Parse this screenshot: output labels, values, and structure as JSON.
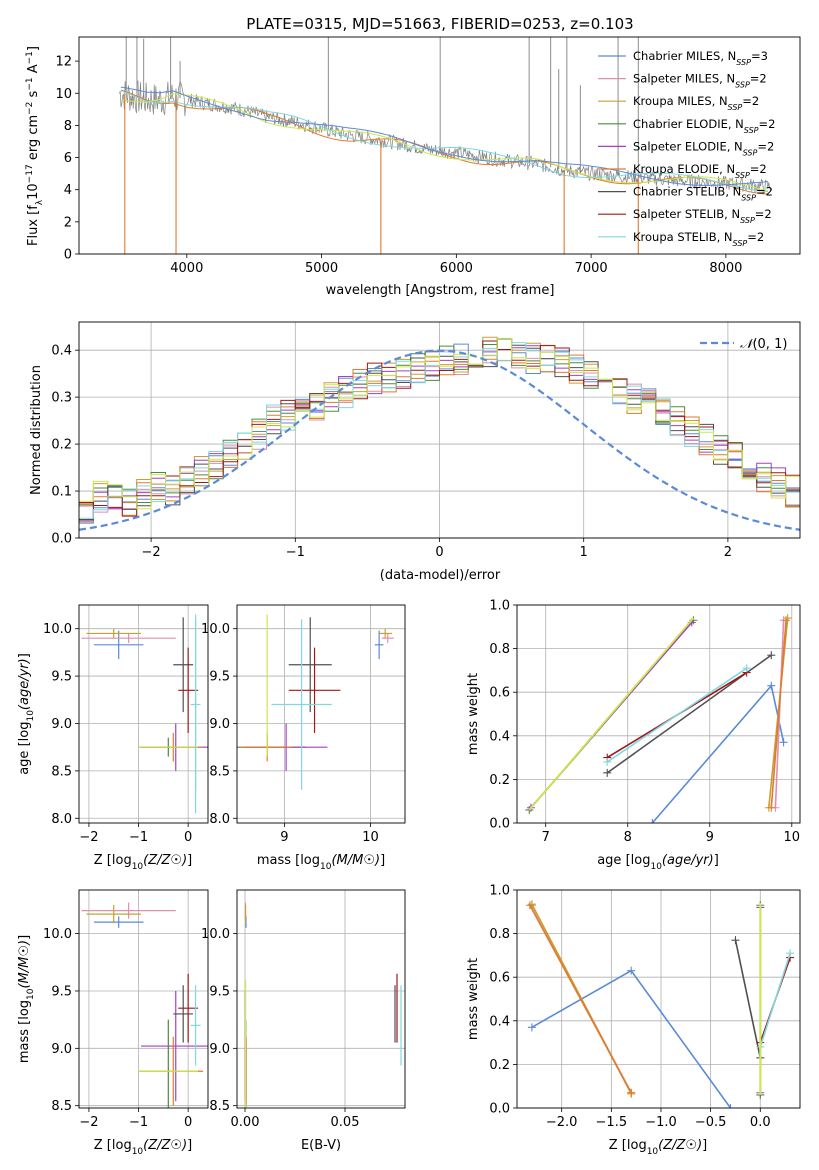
{
  "colors": {
    "chabrier_miles": "#5b8bd6",
    "salpeter_miles": "#de8fb2",
    "kroupa_miles": "#c8a032",
    "chabrier_elodie": "#4e8a3c",
    "salpeter_elodie": "#a63fc4",
    "kroupa_elodie": "#e07a2e",
    "chabrier_stelib": "#505050",
    "salpeter_stelib": "#a01818",
    "kroupa_stelib": "#7fd8e0",
    "data": "#808080",
    "yellowgreen": "#cce84d",
    "grid": "#b0b0b0"
  },
  "chart_data": [
    {
      "type": "line",
      "title": "PLATE=0315, MJD=51663, FIBERID=0253, z=0.103",
      "xlabel": "wavelength [Angstrom, rest frame]",
      "ylabel": "Flux [f_λ10^-17 erg cm^-2 s^-1 A^-1]",
      "xlim": [
        3200,
        8550
      ],
      "ylim": [
        0,
        13.5
      ],
      "xticks": [
        4000,
        5000,
        6000,
        7000,
        8000
      ],
      "yticks": [
        0,
        2,
        4,
        6,
        8,
        10,
        12
      ],
      "grid": false,
      "legend_placement": "top-right",
      "legend": [
        {
          "label": "Chabrier MILES, N",
          "sub": "SSP",
          "suffix": "=3",
          "color_key": "chabrier_miles"
        },
        {
          "label": "Salpeter MILES, N",
          "sub": "SSP",
          "suffix": "=2",
          "color_key": "salpeter_miles"
        },
        {
          "label": "Kroupa MILES, N",
          "sub": "SSP",
          "suffix": "=2",
          "color_key": "kroupa_miles"
        },
        {
          "label": "Chabrier ELODIE, N",
          "sub": "SSP",
          "suffix": "=2",
          "color_key": "chabrier_elodie"
        },
        {
          "label": "Salpeter ELODIE, N",
          "sub": "SSP",
          "suffix": "=2",
          "color_key": "salpeter_elodie"
        },
        {
          "label": "Kroupa ELODIE, N",
          "sub": "SSP",
          "suffix": "=2",
          "color_key": "kroupa_elodie"
        },
        {
          "label": "Chabrier STELIB, N",
          "sub": "SSP",
          "suffix": "=2",
          "color_key": "chabrier_stelib"
        },
        {
          "label": "Salpeter STELIB, N",
          "sub": "SSP",
          "suffix": "=2",
          "color_key": "salpeter_stelib"
        },
        {
          "label": "Kroupa STELIB, N",
          "sub": "SSP",
          "suffix": "=2",
          "color_key": "kroupa_stelib"
        }
      ],
      "continuum": [
        [
          3500,
          10.0
        ],
        [
          3600,
          9.8
        ],
        [
          3700,
          9.6
        ],
        [
          3800,
          9.6
        ],
        [
          3900,
          9.8
        ],
        [
          4000,
          9.6
        ],
        [
          4200,
          9.3
        ],
        [
          4400,
          9.0
        ],
        [
          4600,
          8.5
        ],
        [
          4800,
          8.2
        ],
        [
          5000,
          7.8
        ],
        [
          5200,
          7.4
        ],
        [
          5500,
          7.0
        ],
        [
          5800,
          6.5
        ],
        [
          6000,
          6.3
        ],
        [
          6300,
          5.9
        ],
        [
          6600,
          5.6
        ],
        [
          6800,
          5.2
        ],
        [
          7000,
          5.0
        ],
        [
          7300,
          4.8
        ],
        [
          7600,
          4.6
        ],
        [
          8000,
          4.4
        ],
        [
          8300,
          4.2
        ]
      ],
      "spikes": [
        [
          3550,
          13.5
        ],
        [
          3630,
          13.5
        ],
        [
          3680,
          13.4
        ],
        [
          3880,
          13.5
        ],
        [
          3950,
          12.0
        ],
        [
          5050,
          13.5
        ],
        [
          5880,
          13.5
        ],
        [
          6540,
          13.5
        ],
        [
          6700,
          13.5
        ],
        [
          6760,
          11.5
        ],
        [
          6820,
          13.5
        ],
        [
          6920,
          10.5
        ],
        [
          7200,
          13.5
        ],
        [
          7350,
          13.5
        ]
      ],
      "model_dips": [
        [
          3540,
          0
        ],
        [
          3920,
          0
        ],
        [
          5440,
          0
        ],
        [
          6800,
          0
        ],
        [
          7350,
          0
        ]
      ]
    },
    {
      "type": "line",
      "xlabel": "(data-model)/error",
      "ylabel": "Normed distribution",
      "xlim": [
        -2.5,
        2.5
      ],
      "ylim": [
        0,
        0.46
      ],
      "xticks": [
        -2,
        -1,
        0,
        1,
        2
      ],
      "yticks": [
        0.0,
        0.1,
        0.2,
        0.3,
        0.4
      ],
      "grid": true,
      "legend_placement": "top-right",
      "legend_label": "N(0,1)",
      "bin_edges_start": -2.5,
      "bin_width": 0.1,
      "histogram_base": [
        0.05,
        0.09,
        0.08,
        0.08,
        0.09,
        0.11,
        0.1,
        0.12,
        0.14,
        0.16,
        0.18,
        0.2,
        0.22,
        0.25,
        0.26,
        0.27,
        0.28,
        0.3,
        0.31,
        0.33,
        0.34,
        0.34,
        0.35,
        0.36,
        0.37,
        0.38,
        0.38,
        0.39,
        0.4,
        0.4,
        0.39,
        0.38,
        0.38,
        0.37,
        0.36,
        0.35,
        0.33,
        0.32,
        0.3,
        0.29,
        0.27,
        0.25,
        0.23,
        0.21,
        0.19,
        0.17,
        0.15,
        0.13,
        0.12,
        0.1
      ]
    },
    {
      "type": "scatter",
      "xlabel": "Z [log10(Z/Z☉)]",
      "ylabel": "age  [log10(age/yr)]",
      "xlim": [
        -2.2,
        0.4
      ],
      "ylim": [
        7.95,
        10.25
      ],
      "xticks": [
        -2,
        -1,
        0
      ],
      "yticks": [
        8.0,
        8.5,
        9.0,
        9.5,
        10.0
      ],
      "grid": true
    },
    {
      "type": "scatter",
      "xlabel": "mass [log10(M/M☉)]",
      "xlim": [
        8.45,
        10.4
      ],
      "ylim": [
        7.95,
        10.25
      ],
      "xticks": [
        9,
        10
      ],
      "yticks": [
        8.0,
        8.5,
        9.0,
        9.5,
        10.0
      ],
      "grid": true
    },
    {
      "type": "line",
      "xlabel": "age  [log10(age/yr)]",
      "ylabel": "mass weight",
      "xlim": [
        6.65,
        10.1
      ],
      "ylim": [
        0,
        1.0
      ],
      "xticks": [
        7,
        8,
        9,
        10
      ],
      "yticks": [
        0.0,
        0.2,
        0.4,
        0.6,
        0.8,
        1.0
      ],
      "grid": true
    },
    {
      "type": "scatter",
      "xlabel": "Z [log10(Z/Z☉)]",
      "ylabel": "mass [log10(M/M☉)]",
      "xlim": [
        -2.2,
        0.4
      ],
      "ylim": [
        8.48,
        10.38
      ],
      "xticks": [
        -2,
        -1,
        0
      ],
      "yticks": [
        8.5,
        9.0,
        9.5,
        10.0
      ],
      "grid": true
    },
    {
      "type": "scatter",
      "xlabel": "E(B-V)",
      "xlim": [
        -0.004,
        0.08
      ],
      "ylim": [
        8.48,
        10.38
      ],
      "xticks": [
        0.0,
        0.05
      ],
      "yticks": [
        8.5,
        9.0,
        9.5,
        10.0
      ],
      "grid": true
    },
    {
      "type": "line",
      "xlabel": "Z [log10(Z/Z☉)]",
      "ylabel": "mass weight",
      "xlim": [
        -2.45,
        0.4
      ],
      "ylim": [
        0,
        1.0
      ],
      "xticks": [
        -2.0,
        -1.5,
        -1.0,
        -0.5,
        0.0
      ],
      "yticks": [
        0.0,
        0.2,
        0.4,
        0.6,
        0.8,
        1.0
      ],
      "grid": true
    }
  ],
  "models": [
    {
      "key": "chabrier_miles",
      "Z": -1.4,
      "Zerr": 0.5,
      "age": 9.83,
      "ageErr": 0.15,
      "mass": 10.1,
      "massErr": 0.05,
      "ebv": 0.0005,
      "wa": [
        [
          8.3,
          0.0
        ],
        [
          9.75,
          0.63
        ],
        [
          9.9,
          0.37
        ]
      ],
      "wz": [
        [
          -0.3,
          0.0
        ],
        [
          -1.3,
          0.63
        ],
        [
          -2.3,
          0.37
        ]
      ]
    },
    {
      "key": "salpeter_miles",
      "Z": -1.2,
      "Zerr": 0.95,
      "age": 9.9,
      "ageErr": 0.05,
      "mass": 10.2,
      "massErr": 0.07,
      "ebv": 0.0002,
      "wa": [
        [
          9.8,
          0.07
        ],
        [
          9.9,
          0.93
        ]
      ],
      "wz": [
        [
          -1.3,
          0.07
        ],
        [
          -2.3,
          0.93
        ]
      ]
    },
    {
      "key": "kroupa_miles",
      "Z": -1.5,
      "Zerr": 0.55,
      "age": 9.95,
      "ageErr": 0.05,
      "mass": 10.17,
      "massErr": 0.08,
      "ebv": 0.0003,
      "wa": [
        [
          9.72,
          0.07
        ],
        [
          9.95,
          0.94
        ]
      ],
      "wz": [
        [
          -1.3,
          0.065
        ],
        [
          -2.3,
          0.935
        ]
      ]
    },
    {
      "key": "chabrier_elodie",
      "Z": -0.4,
      "Zerr": 0.6,
      "age": 8.75,
      "ageErr": 0.1,
      "mass": 8.8,
      "massErr": 0.45,
      "ebv": 0.0004,
      "wa": [
        [
          6.8,
          0.06
        ],
        [
          8.8,
          0.93
        ]
      ],
      "wz": [
        [
          0.0,
          0.06
        ],
        [
          0.0,
          0.93
        ]
      ]
    },
    {
      "key": "salpeter_elodie",
      "Z": -0.25,
      "Zerr": 0.7,
      "age": 8.75,
      "ageErr": 0.25,
      "mass": 9.02,
      "massErr": 0.48,
      "ebv": 0.0002,
      "wa": [
        [
          6.82,
          0.07
        ],
        [
          8.78,
          0.92
        ]
      ],
      "wz": [
        [
          0.0,
          0.07
        ],
        [
          0.0,
          0.92
        ]
      ]
    },
    {
      "key": "kroupa_elodie",
      "Z": -0.3,
      "Zerr": 0.6,
      "age": 8.75,
      "ageErr": 0.15,
      "mass": 8.8,
      "massErr": 0.3,
      "ebv": 0.0006,
      "wa": [
        [
          9.75,
          0.07
        ],
        [
          9.93,
          0.93
        ]
      ],
      "wz": [
        [
          -1.3,
          0.07
        ],
        [
          -2.32,
          0.93
        ]
      ]
    },
    {
      "key": "chabrier_stelib",
      "Z": -0.1,
      "Zerr": 0.2,
      "age": 9.62,
      "ageErr": 0.5,
      "mass": 9.3,
      "massErr": 0.25,
      "ebv": 0.075,
      "wa": [
        [
          7.75,
          0.23
        ],
        [
          9.75,
          0.77
        ]
      ],
      "wz": [
        [
          0.0,
          0.23
        ],
        [
          -0.25,
          0.77
        ]
      ]
    },
    {
      "key": "salpeter_stelib",
      "Z": 0.0,
      "Zerr": 0.2,
      "age": 9.35,
      "ageErr": 0.45,
      "mass": 9.35,
      "massErr": 0.3,
      "ebv": 0.076,
      "wa": [
        [
          7.75,
          0.3
        ],
        [
          9.45,
          0.69
        ]
      ],
      "wz": [
        [
          0.0,
          0.3
        ],
        [
          0.3,
          0.69
        ]
      ]
    },
    {
      "key": "kroupa_stelib",
      "Z": 0.15,
      "Zerr": 0.1,
      "age": 9.2,
      "ageErr": 0.9,
      "mass": 9.2,
      "massErr": 0.35,
      "ebv": 0.078,
      "wa": [
        [
          7.75,
          0.28
        ],
        [
          9.45,
          0.71
        ]
      ],
      "wz": [
        [
          0.0,
          0.28
        ],
        [
          0.3,
          0.71
        ]
      ]
    }
  ]
}
